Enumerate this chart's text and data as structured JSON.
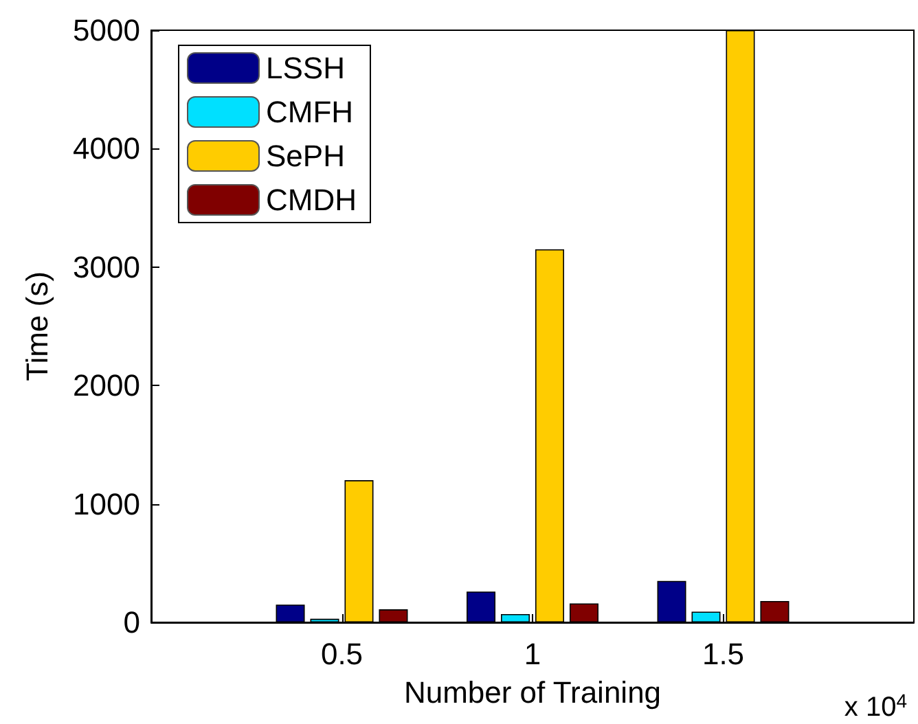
{
  "chart_data": {
    "type": "bar",
    "xlabel": "Number of Training",
    "ylabel": "Time (s)",
    "x": [
      0.5,
      1,
      1.5
    ],
    "xlim": [
      0,
      2
    ],
    "xticks": [
      0.5,
      1,
      1.5
    ],
    "ylim": [
      0,
      5000
    ],
    "yticks": [
      0,
      1000,
      2000,
      3000,
      4000,
      5000
    ],
    "grid": false,
    "legend": "top left",
    "annotations": [
      "x 10$^{4}$"
    ],
    "series": [
      {
        "name": "LSSH",
        "color": "#000088",
        "values": [
          150,
          260,
          350
        ]
      },
      {
        "name": "CMFH",
        "color": "#00e0ff",
        "values": [
          30,
          70,
          90
        ]
      },
      {
        "name": "SePH",
        "color": "#ffcc00",
        "values": [
          1200,
          3150,
          5000
        ]
      },
      {
        "name": "CMDH",
        "color": "#800000",
        "values": [
          110,
          160,
          180
        ]
      }
    ]
  }
}
